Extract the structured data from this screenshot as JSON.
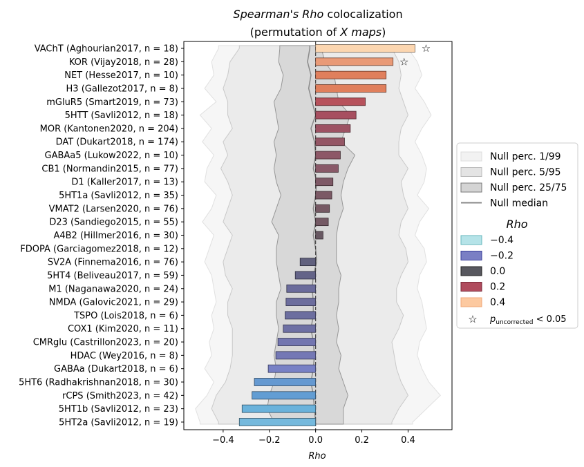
{
  "chart_data": {
    "type": "bar",
    "orientation": "horizontal",
    "title_line1_prefix": "Spearman's Rho",
    "title_line1_suffix": " colocalization",
    "title_line2_prefix": "(permutation of ",
    "title_line2_italic": "X maps",
    "title_line2_suffix": ")",
    "xlabel": "Rho",
    "xlim": [
      -0.57,
      0.59
    ],
    "xticks": [
      -0.4,
      -0.2,
      0.0,
      0.2,
      0.4
    ],
    "xtick_labels": [
      "−0.4",
      "−0.2",
      "0.0",
      "0.2",
      "0.4"
    ],
    "categories": [
      "VAChT (Aghourian2017, n = 18)",
      "KOR (Vijay2018, n = 28)",
      "NET (Hesse2017, n = 10)",
      "H3 (Gallezot2017, n = 8)",
      "mGluR5 (Smart2019, n = 73)",
      "5HTT (Savli2012, n = 18)",
      "MOR (Kantonen2020, n = 204)",
      "DAT (Dukart2018, n = 174)",
      "GABAa5 (Lukow2022, n = 10)",
      "CB1 (Normandin2015, n = 77)",
      "D1 (Kaller2017, n = 13)",
      "5HT1a (Savli2012, n = 35)",
      "VMAT2 (Larsen2020, n = 76)",
      "D23 (Sandiego2015, n = 55)",
      "A4B2 (Hillmer2016, n = 30)",
      "FDOPA (Garciagomez2018, n = 12)",
      "SV2A (Finnema2016, n = 76)",
      "5HT4 (Beliveau2017, n = 59)",
      "M1 (Naganawa2020, n = 24)",
      "NMDA (Galovic2021, n = 29)",
      "TSPO (Lois2018, n = 6)",
      "COX1 (Kim2020, n = 11)",
      "CMRglu (Castrillon2023, n = 20)",
      "HDAC (Wey2016, n = 8)",
      "GABAa (Dukart2018, n = 6)",
      "5HT6 (Radhakrishnan2018, n = 30)",
      "rCPS (Smith2023, n = 42)",
      "5HT1b (Savli2012, n = 23)",
      "5HT2a (Savli2012, n = 19)"
    ],
    "values": [
      0.43,
      0.335,
      0.305,
      0.305,
      0.215,
      0.175,
      0.15,
      0.125,
      0.107,
      0.098,
      0.075,
      0.07,
      0.06,
      0.055,
      0.032,
      0.0,
      -0.067,
      -0.088,
      -0.125,
      -0.128,
      -0.132,
      -0.14,
      -0.163,
      -0.172,
      -0.205,
      -0.265,
      -0.275,
      -0.318,
      -0.33
    ],
    "significant": [
      true,
      true,
      false,
      false,
      false,
      false,
      false,
      false,
      false,
      false,
      false,
      false,
      false,
      false,
      false,
      false,
      false,
      false,
      false,
      false,
      false,
      false,
      false,
      false,
      false,
      false,
      false,
      false,
      false
    ],
    "null_perc_1_99": {
      "low": [
        -0.42,
        -0.45,
        -0.44,
        -0.48,
        -0.43,
        -0.5,
        -0.45,
        -0.49,
        -0.44,
        -0.47,
        -0.48,
        -0.43,
        -0.45,
        -0.49,
        -0.44,
        -0.46,
        -0.48,
        -0.45,
        -0.44,
        -0.43,
        -0.45,
        -0.44,
        -0.46,
        -0.45,
        -0.48,
        -0.44,
        -0.47,
        -0.52,
        -0.5
      ],
      "high": [
        0.4,
        0.44,
        0.46,
        0.43,
        0.47,
        0.5,
        0.46,
        0.43,
        0.46,
        0.48,
        0.47,
        0.44,
        0.49,
        0.45,
        0.43,
        0.47,
        0.48,
        0.45,
        0.44,
        0.46,
        0.47,
        0.48,
        0.45,
        0.44,
        0.46,
        0.49,
        0.54,
        0.48,
        0.42
      ]
    },
    "null_perc_5_95": {
      "low": [
        -0.33,
        -0.37,
        -0.38,
        -0.4,
        -0.38,
        -0.38,
        -0.36,
        -0.4,
        -0.38,
        -0.41,
        -0.38,
        -0.36,
        -0.38,
        -0.4,
        -0.36,
        -0.38,
        -0.4,
        -0.39,
        -0.36,
        -0.38,
        -0.38,
        -0.36,
        -0.36,
        -0.36,
        -0.37,
        -0.39,
        -0.43,
        -0.45,
        -0.42
      ],
      "high": [
        0.33,
        0.36,
        0.37,
        0.36,
        0.38,
        0.4,
        0.37,
        0.36,
        0.36,
        0.4,
        0.37,
        0.38,
        0.4,
        0.37,
        0.36,
        0.39,
        0.4,
        0.37,
        0.35,
        0.35,
        0.38,
        0.36,
        0.33,
        0.34,
        0.35,
        0.37,
        0.4,
        0.36,
        0.33
      ]
    },
    "null_perc_25_75": {
      "low": [
        -0.155,
        -0.16,
        -0.14,
        -0.15,
        -0.18,
        -0.17,
        -0.16,
        -0.18,
        -0.17,
        -0.18,
        -0.17,
        -0.15,
        -0.17,
        -0.19,
        -0.16,
        -0.17,
        -0.17,
        -0.16,
        -0.15,
        -0.17,
        -0.17,
        -0.16,
        -0.17,
        -0.18,
        -0.17,
        -0.18,
        -0.2,
        -0.21,
        -0.18
      ],
      "high": [
        0.025,
        0.04,
        0.08,
        0.09,
        0.1,
        0.15,
        0.13,
        0.11,
        0.17,
        0.14,
        0.12,
        0.11,
        0.12,
        0.1,
        0.09,
        0.09,
        0.09,
        0.11,
        0.1,
        0.1,
        0.09,
        0.1,
        0.09,
        0.11,
        0.1,
        0.12,
        0.14,
        0.12,
        0.12
      ]
    },
    "null_median": [
      -0.025,
      -0.035,
      -0.02,
      -0.03,
      -0.015,
      0.0,
      -0.02,
      -0.005,
      0.0,
      -0.01,
      0.005,
      0.0,
      -0.01,
      0.0,
      -0.01,
      0.0,
      0.005,
      -0.01,
      -0.015,
      -0.01,
      -0.01,
      -0.02,
      -0.01,
      -0.005,
      -0.01,
      -0.02,
      -0.01,
      -0.005,
      0.0
    ],
    "colorbar_stops": [
      {
        "v": -0.4,
        "color": "#b5e3e8"
      },
      {
        "v": -0.3,
        "color": "#5aa7d8"
      },
      {
        "v": -0.2,
        "color": "#7a7fc4"
      },
      {
        "v": -0.1,
        "color": "#66668e"
      },
      {
        "v": 0.0,
        "color": "#58585f"
      },
      {
        "v": 0.1,
        "color": "#8a5968"
      },
      {
        "v": 0.2,
        "color": "#b04b5d"
      },
      {
        "v": 0.3,
        "color": "#de7a58"
      },
      {
        "v": 0.4,
        "color": "#fcd6b0"
      }
    ]
  },
  "legend": {
    "items": [
      {
        "label": "Null perc. 1/99",
        "kind": "band",
        "fill": "#f2f2f2",
        "stroke": "#dddddd"
      },
      {
        "label": "Null perc. 5/95",
        "kind": "band",
        "fill": "#e4e4e4",
        "stroke": "#bbbbbb"
      },
      {
        "label": "Null perc. 25/75",
        "kind": "band",
        "fill": "#d4d4d4",
        "stroke": "#777777"
      },
      {
        "label": "Null median",
        "kind": "line",
        "stroke": "#888888"
      }
    ],
    "title": "Rho",
    "rho_items": [
      {
        "label": "−0.4",
        "fill": "#b5e3e8",
        "stroke": "#67b7bd"
      },
      {
        "label": "−0.2",
        "fill": "#7a7fc4",
        "stroke": "#3a3f9a"
      },
      {
        "label": "0.0",
        "fill": "#58585f",
        "stroke": "#222222"
      },
      {
        "label": "0.2",
        "fill": "#b04b5d",
        "stroke": "#7a2a38"
      },
      {
        "label": "0.4",
        "fill": "#fcc9a0",
        "stroke": "#f0a878"
      }
    ],
    "star_item": {
      "p_label": "p",
      "sub_label": "uncorrected",
      "suffix": " < 0.05"
    }
  }
}
